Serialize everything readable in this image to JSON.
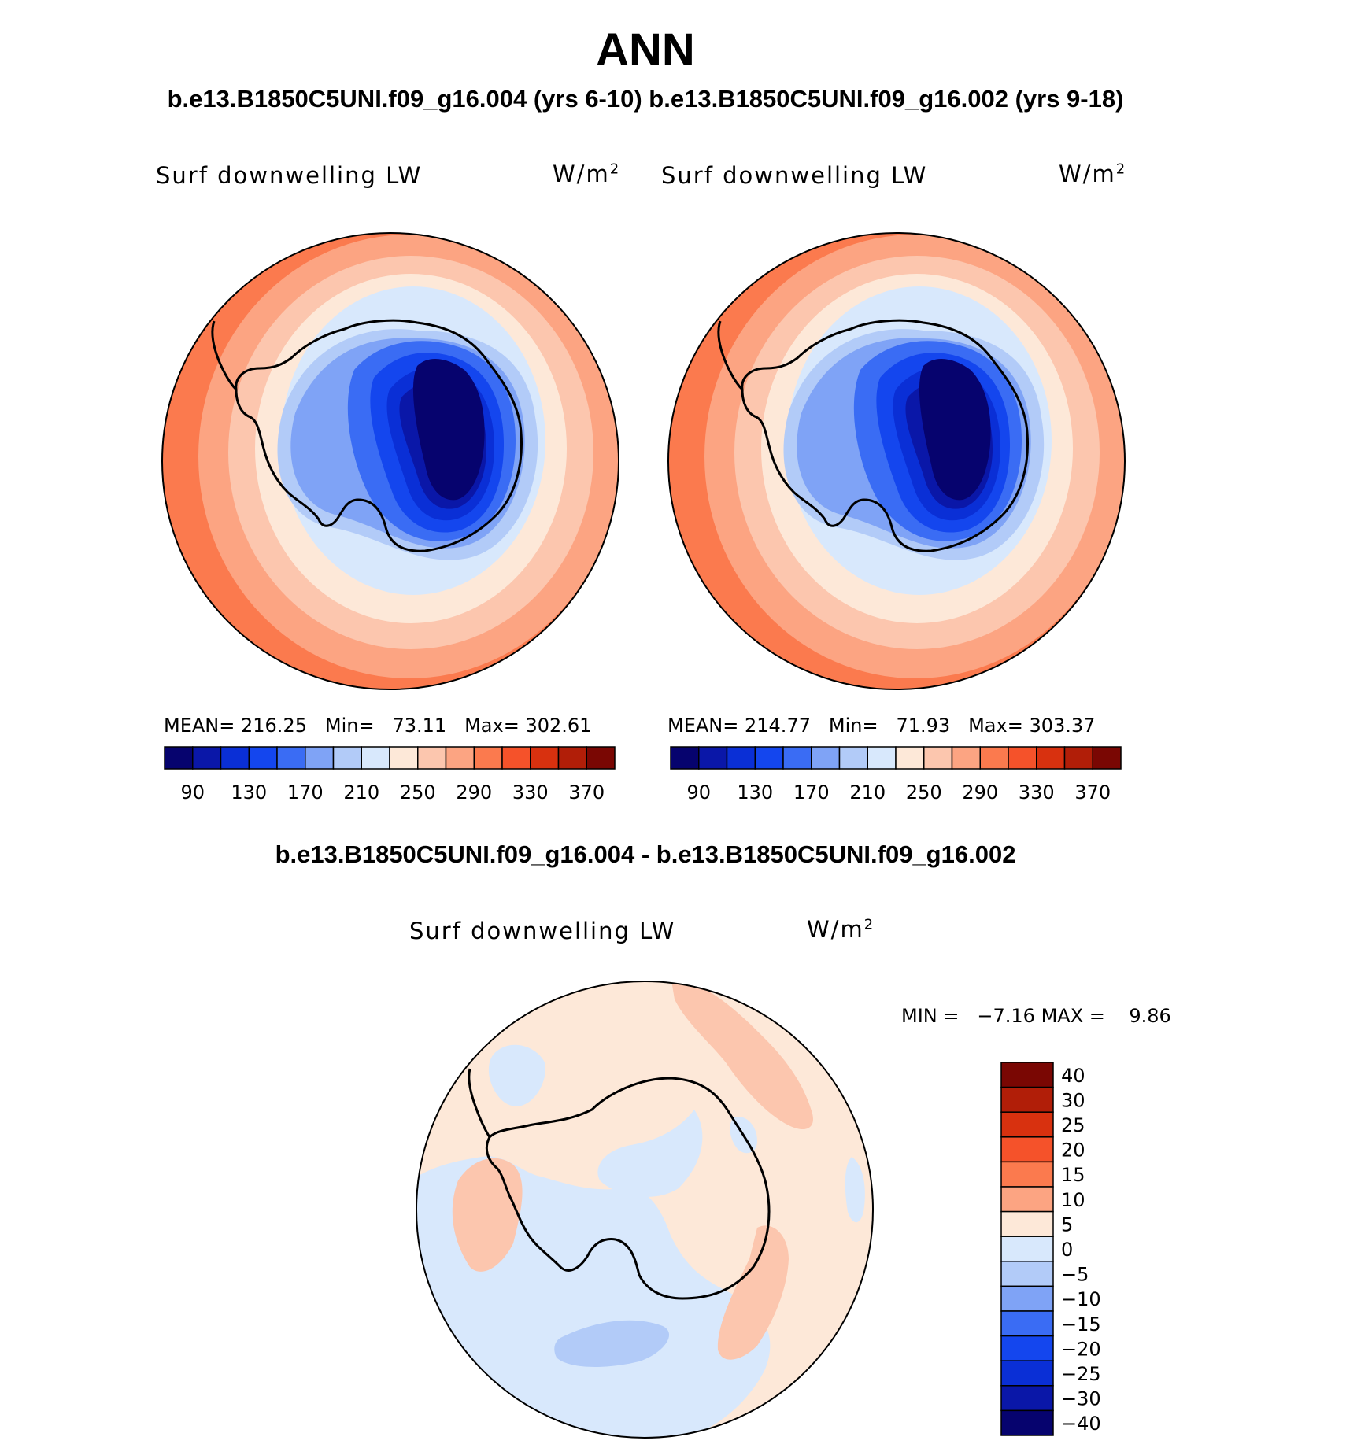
{
  "title": "ANN",
  "subtitle": "b.e13.B1850C5UNI.f09_g16.004 (yrs 6-10) b.e13.B1850C5UNI.f09_g16.002 (yrs 9-18)",
  "panels": [
    {
      "variable": "Surf downwelling LW",
      "units_base": "W/m",
      "units_exp": "2",
      "stats": {
        "mean_label": "MEAN=",
        "mean": "216.25",
        "min_label": "Min=",
        "min": "73.11",
        "max_label": "Max=",
        "max": "302.61"
      }
    },
    {
      "variable": "Surf downwelling LW",
      "units_base": "W/m",
      "units_exp": "2",
      "stats": {
        "mean_label": "MEAN=",
        "mean": "214.77",
        "min_label": "Min=",
        "min": "71.93",
        "max_label": "Max=",
        "max": "303.37"
      }
    }
  ],
  "colorbar_top": {
    "colors": [
      "#06036e",
      "#0a17a8",
      "#0a2fd6",
      "#1446ee",
      "#3a6cf4",
      "#7fa3f6",
      "#b2cbf8",
      "#d8e8fc",
      "#fde8d8",
      "#fcc6ae",
      "#fca482",
      "#fb7a4e",
      "#f5522a",
      "#d8310f",
      "#b11e08",
      "#7a0703"
    ],
    "tick_labels": [
      "90",
      "130",
      "170",
      "210",
      "250",
      "290",
      "330",
      "370"
    ]
  },
  "diff": {
    "title": "b.e13.B1850C5UNI.f09_g16.004 - b.e13.B1850C5UNI.f09_g16.002",
    "variable": "Surf downwelling LW",
    "units_base": "W/m",
    "units_exp": "2",
    "min_label": "MIN =",
    "min": "−7.16",
    "max_label": "MAX =",
    "max": "9.86",
    "colorbar": {
      "colors": [
        "#7a0703",
        "#b11e08",
        "#d8310f",
        "#f5522a",
        "#fb7a4e",
        "#fca482",
        "#fde8d8",
        "#d8e8fc",
        "#b2cbf8",
        "#7fa3f6",
        "#3a6cf4",
        "#1446ee",
        "#0a2fd6",
        "#0a17a8",
        "#06036e"
      ],
      "tick_labels": [
        "40",
        "30",
        "25",
        "20",
        "15",
        "10",
        "5",
        "0",
        "−5",
        "−10",
        "−15",
        "−20",
        "−25",
        "−30",
        "−40"
      ]
    }
  }
}
